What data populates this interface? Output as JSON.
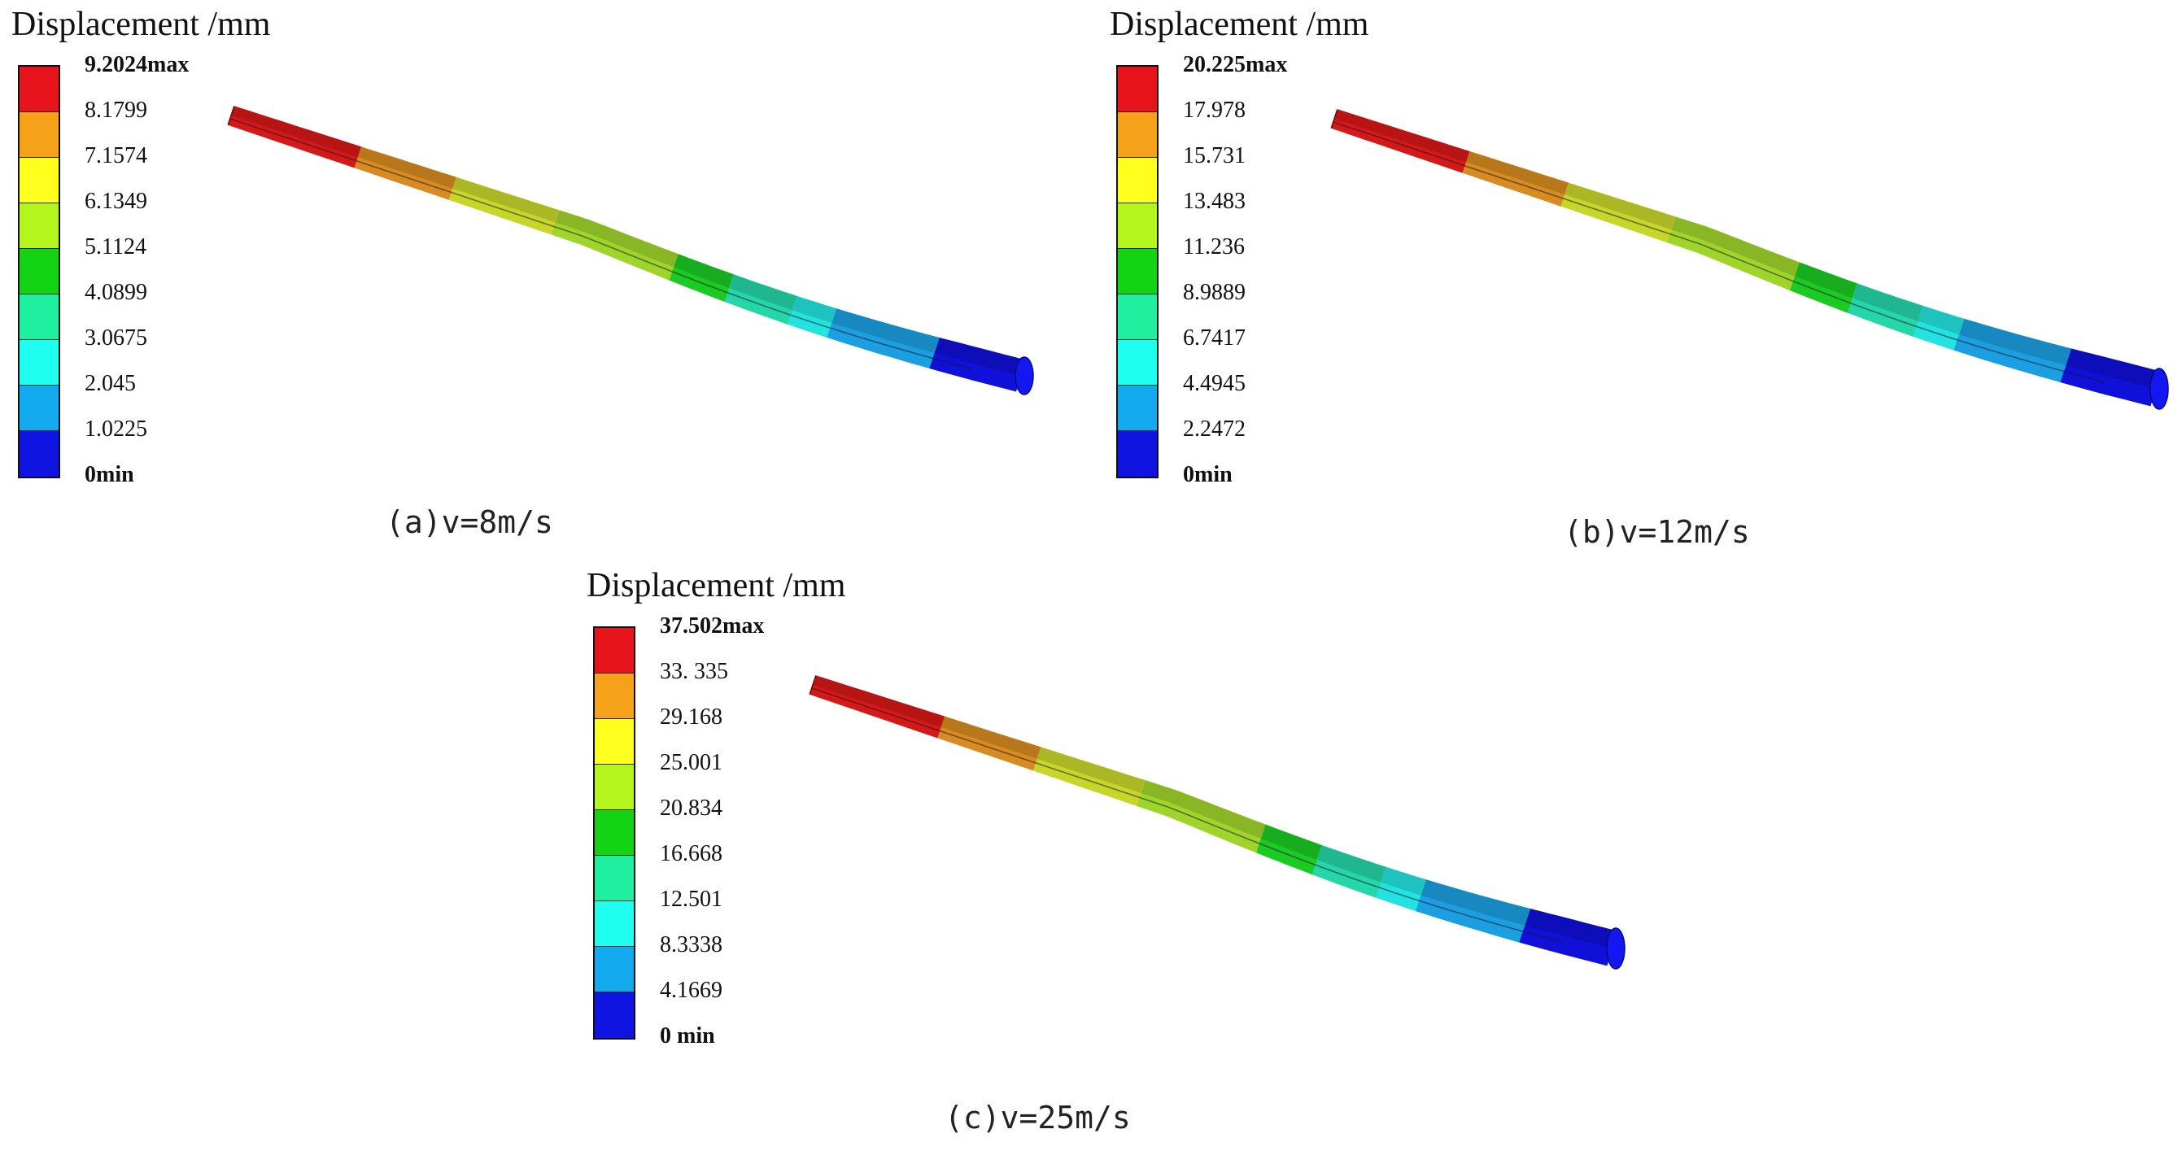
{
  "colors": {
    "band_colors": [
      "#e8141c",
      "#f5a21a",
      "#ffff1e",
      "#b4f51e",
      "#14d214",
      "#1ef0a0",
      "#1effef",
      "#14aaef",
      "#0f14e0"
    ],
    "blade_colors": [
      "#d51818",
      "#d88b20",
      "#c8d62a",
      "#9fd42a",
      "#1bca23",
      "#24d6a8",
      "#23e2df",
      "#1c9fe0",
      "#1010d8"
    ]
  },
  "panels": [
    {
      "legend_title": "Displacement /mm",
      "ticks": [
        "9.2024max",
        "8.1799",
        "7.1574",
        "6.1349",
        "5.1124",
        "4.0899",
        "3.0675",
        "2.045",
        "1.0225",
        "0min"
      ],
      "caption": "(a)v=8m/s"
    },
    {
      "legend_title": "Displacement /mm",
      "ticks": [
        "20.225max",
        "17.978",
        "15.731",
        "13.483",
        "11.236",
        "8.9889",
        "6.7417",
        "4.4945",
        "2.2472",
        "0min"
      ],
      "caption": "(b)v=12m/s"
    },
    {
      "legend_title": "Displacement /mm",
      "ticks": [
        "37.502max",
        "33. 335",
        "29.168",
        "25.001",
        "20.834",
        "16.668",
        "12.501",
        "8.3338",
        "4.1669",
        "0 min"
      ],
      "caption": "(c)v=25m/s"
    }
  ]
}
